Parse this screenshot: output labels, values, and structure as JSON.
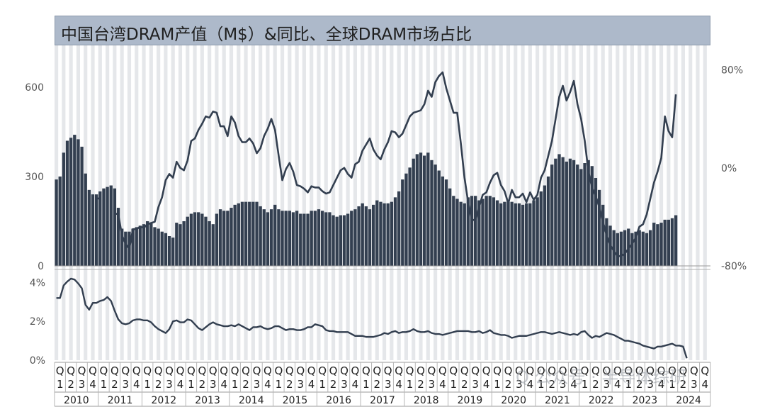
{
  "chart_data": {
    "type": "bar+line",
    "title": "中国台湾DRAM产值（M$）&同比、全球DRAM市场占比",
    "top_panel": {
      "left_axis_ticks": [
        "0",
        "300",
        "600"
      ],
      "right_axis_ticks": [
        "-80%",
        "0%",
        "80%"
      ],
      "ylim_left": [
        0,
        740
      ],
      "ylim_right": [
        -80,
        100
      ],
      "series": [
        {
          "kind": "bar",
          "axis": "left",
          "values": [
            290,
            300,
            380,
            420,
            430,
            440,
            425,
            400,
            310,
            255,
            240,
            240,
            250,
            260,
            265,
            270,
            260,
            195,
            125,
            115,
            115,
            125,
            130,
            135,
            140,
            150,
            145,
            130,
            125,
            115,
            110,
            100,
            95,
            145,
            140,
            150,
            165,
            175,
            180,
            180,
            175,
            165,
            150,
            140,
            175,
            190,
            185,
            185,
            195,
            205,
            210,
            215,
            215,
            215,
            215,
            215,
            200,
            190,
            180,
            190,
            205,
            190,
            185,
            185,
            185,
            180,
            185,
            175,
            175,
            175,
            185,
            185,
            190,
            185,
            180,
            180,
            170,
            165,
            170,
            170,
            175,
            185,
            190,
            200,
            210,
            200,
            190,
            205,
            220,
            215,
            210,
            210,
            215,
            230,
            250,
            290,
            310,
            330,
            360,
            375,
            380,
            370,
            380,
            355,
            340,
            320,
            300,
            290,
            260,
            235,
            225,
            215,
            210,
            230,
            235,
            235,
            220,
            225,
            235,
            235,
            230,
            220,
            210,
            215,
            215,
            215,
            210,
            210,
            205,
            210,
            210,
            220,
            230,
            250,
            270,
            300,
            340,
            360,
            375,
            365,
            350,
            360,
            355,
            340,
            325,
            345,
            355,
            335,
            295,
            255,
            205,
            160,
            135,
            120,
            110,
            115,
            120,
            125,
            110,
            115,
            120,
            115,
            110,
            120,
            145,
            140,
            145,
            155,
            155,
            160,
            170
          ]
        },
        {
          "kind": "line",
          "axis": "right",
          "values": [
            null,
            null,
            null,
            null,
            null,
            null,
            null,
            null,
            null,
            null,
            null,
            -25,
            -25,
            null,
            null,
            null,
            -37,
            -38,
            -55,
            -62,
            -66,
            -50,
            -50,
            -48,
            -49,
            -46,
            -45,
            -44,
            -32,
            -24,
            -10,
            -5,
            -8,
            5,
            0,
            -2,
            6,
            22,
            24,
            31,
            36,
            42,
            41,
            46,
            45,
            34,
            34,
            26,
            42,
            37,
            26,
            21,
            21,
            24,
            20,
            12,
            16,
            26,
            32,
            40,
            31,
            10,
            -10,
            -1,
            4,
            -3,
            -14,
            -15,
            -17,
            -20,
            -15,
            -16,
            -16,
            -19,
            -21,
            -20,
            -14,
            -8,
            -2,
            0,
            -5,
            -8,
            3,
            5,
            14,
            19,
            24,
            15,
            10,
            7,
            15,
            21,
            30,
            29,
            25,
            28,
            35,
            42,
            45,
            46,
            47,
            52,
            63,
            58,
            70,
            75,
            78,
            65,
            55,
            45,
            45,
            20,
            -8,
            -28,
            -42,
            -43,
            -32,
            -22,
            -20,
            -12,
            -6,
            -4,
            -14,
            -19,
            -29,
            -18,
            -24,
            -24,
            -21,
            -28,
            -20,
            -26,
            -22,
            -8,
            -2,
            10,
            22,
            40,
            58,
            67,
            55,
            62,
            71,
            52,
            40,
            22,
            -3,
            -16,
            -23,
            -32,
            -44,
            -55,
            -63,
            -68,
            -72,
            -72,
            -70,
            -66,
            -62,
            -57,
            -48,
            -46,
            -38,
            -25,
            -12,
            -3,
            8,
            42,
            30,
            25,
            60
          ]
        }
      ]
    },
    "bottom_panel": {
      "y_ticks": [
        "0%",
        "2%",
        "4%"
      ],
      "ylim": [
        0,
        4.6
      ],
      "series": [
        {
          "kind": "line",
          "values": [
            3.2,
            3.2,
            3.85,
            4.05,
            4.2,
            4.15,
            3.95,
            3.7,
            2.85,
            2.6,
            2.95,
            2.95,
            3.05,
            3.1,
            3.25,
            3.05,
            2.55,
            2.1,
            1.9,
            1.85,
            1.9,
            2.05,
            2.1,
            2.1,
            2.05,
            2.05,
            1.95,
            1.75,
            1.6,
            1.5,
            1.4,
            1.6,
            2.0,
            2.05,
            1.95,
            1.95,
            2.1,
            2.05,
            1.85,
            1.65,
            1.55,
            1.7,
            1.85,
            1.95,
            1.85,
            1.8,
            1.75,
            1.75,
            1.8,
            1.75,
            1.85,
            1.75,
            1.65,
            1.55,
            1.7,
            1.7,
            1.75,
            1.65,
            1.6,
            1.65,
            1.75,
            1.75,
            1.65,
            1.55,
            1.6,
            1.6,
            1.55,
            1.55,
            1.6,
            1.7,
            1.7,
            1.85,
            1.8,
            1.75,
            1.55,
            1.5,
            1.5,
            1.45,
            1.45,
            1.45,
            1.45,
            1.35,
            1.25,
            1.25,
            1.25,
            1.2,
            1.2,
            1.2,
            1.25,
            1.3,
            1.4,
            1.35,
            1.45,
            1.5,
            1.4,
            1.45,
            1.45,
            1.5,
            1.6,
            1.5,
            1.45,
            1.45,
            1.5,
            1.4,
            1.35,
            1.35,
            1.3,
            1.35,
            1.4,
            1.45,
            1.5,
            1.5,
            1.5,
            1.5,
            1.45,
            1.45,
            1.5,
            1.4,
            1.45,
            1.55,
            1.4,
            1.35,
            1.3,
            1.3,
            1.25,
            1.15,
            1.2,
            1.25,
            1.25,
            1.25,
            1.3,
            1.35,
            1.4,
            1.45,
            1.45,
            1.4,
            1.35,
            1.4,
            1.45,
            1.4,
            1.35,
            1.3,
            1.35,
            1.3,
            1.45,
            1.5,
            1.3,
            1.15,
            1.25,
            1.2,
            1.3,
            1.4,
            1.35,
            1.3,
            1.2,
            1.1,
            1.0,
            1.0,
            0.95,
            0.9,
            0.85,
            0.75,
            0.7,
            0.65,
            0.6,
            0.7,
            0.7,
            0.75,
            0.8,
            0.85,
            0.75,
            0.75,
            0.7,
            0.1
          ]
        }
      ]
    },
    "x_axis": {
      "quarter_letter": "Q",
      "quarter_numbers": [
        "1",
        "2",
        "3",
        "4"
      ],
      "years": [
        "2010",
        "2011",
        "2012",
        "2013",
        "2014",
        "2015",
        "2016",
        "2017",
        "2018",
        "2019",
        "2020",
        "2021",
        "2022",
        "2023",
        "2024"
      ]
    },
    "colors": {
      "bar": "#333f50",
      "line": "#333f50",
      "title_bg": "#adb9ca",
      "stripe": "#d0d3d8"
    }
  },
  "watermark": "Q 公众号 · 半导体综研"
}
